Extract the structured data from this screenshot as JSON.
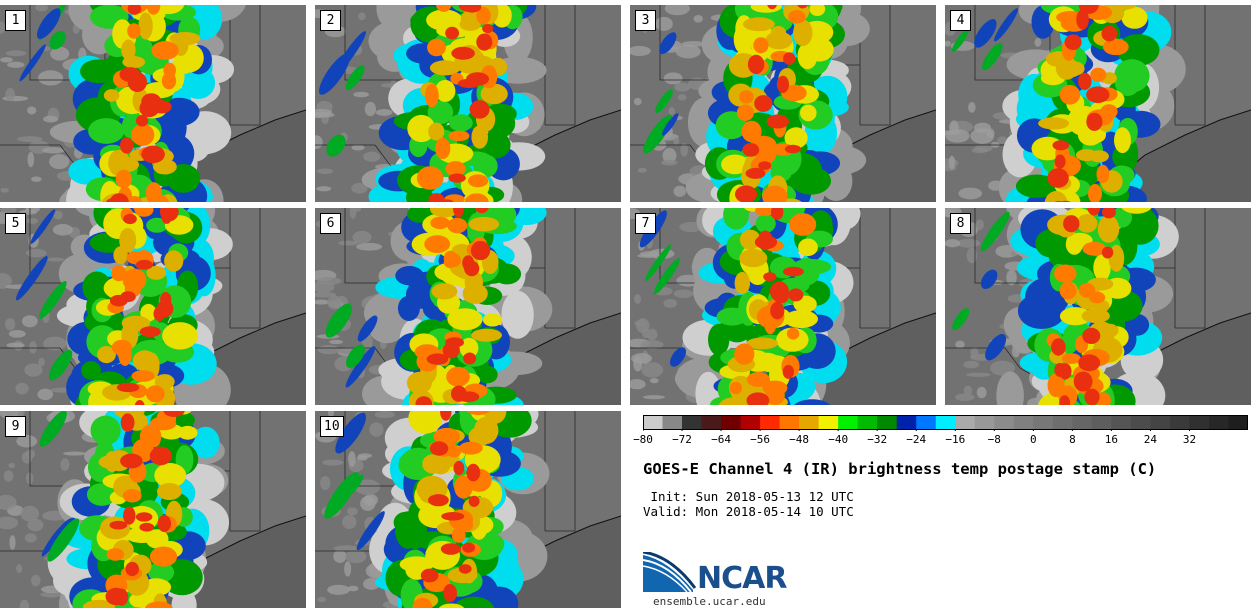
{
  "panels": [
    {
      "label": "1"
    },
    {
      "label": "2"
    },
    {
      "label": "3"
    },
    {
      "label": "4"
    },
    {
      "label": "5"
    },
    {
      "label": "6"
    },
    {
      "label": "7"
    },
    {
      "label": "8"
    },
    {
      "label": "9"
    },
    {
      "label": "10"
    }
  ],
  "colorbar": {
    "colors": [
      "#cccccc",
      "#888888",
      "#333333",
      "#4a1a1a",
      "#700000",
      "#b00000",
      "#ff2a00",
      "#ff7700",
      "#e6a800",
      "#f2f200",
      "#00f200",
      "#00bb00",
      "#008800",
      "#0022aa",
      "#0077ff",
      "#00eeff",
      "#aaaaaa",
      "#999999",
      "#8c8c8c",
      "#808080",
      "#777777",
      "#6e6e6e",
      "#666666",
      "#5e5e5e",
      "#555555",
      "#4c4c4c",
      "#444444",
      "#3a3a3a",
      "#303030",
      "#272727",
      "#1e1e1e"
    ],
    "ticks": [
      "−80",
      "−72",
      "−64",
      "−56",
      "−48",
      "−40",
      "−32",
      "−24",
      "−16",
      "−8",
      "0",
      "8",
      "16",
      "24",
      "32"
    ]
  },
  "title": "GOES-E Channel 4 (IR) brightness temp postage stamp (C)",
  "init": " Init: Sun 2018-05-13 12 UTC",
  "valid": "Valid: Mon 2018-05-14 10 UTC",
  "logo_text": "NCAR",
  "site": "ensemble.ucar.edu"
}
